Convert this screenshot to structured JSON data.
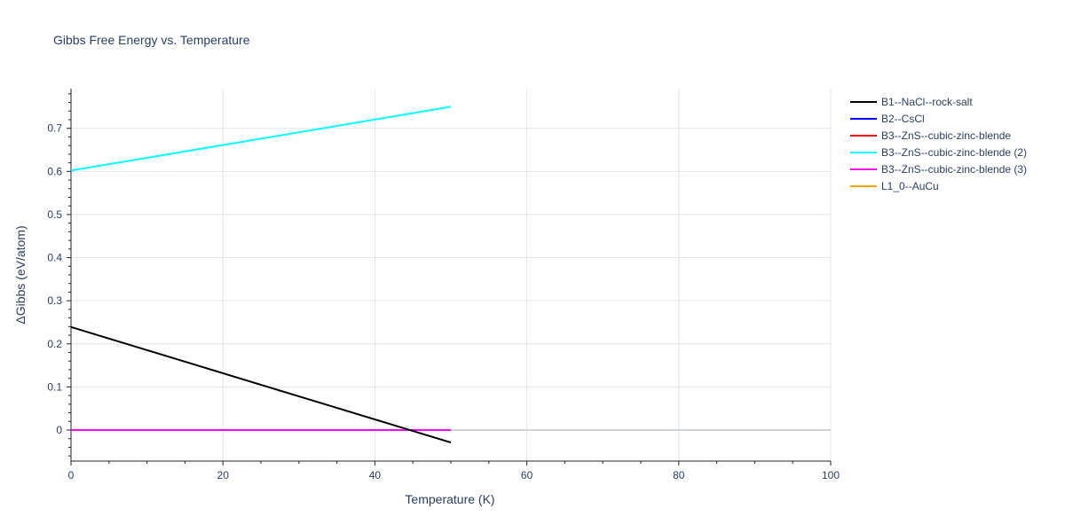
{
  "chart_data": {
    "type": "line",
    "title": "Gibbs Free Energy vs. Temperature",
    "xlabel": "Temperature (K)",
    "ylabel": "ΔGibbs (eV/atom)",
    "xlim": [
      0,
      100
    ],
    "ylim": [
      -0.072,
      0.792
    ],
    "x_ticks": [
      0,
      20,
      40,
      60,
      80,
      100
    ],
    "y_ticks": [
      0,
      0.1,
      0.2,
      0.3,
      0.4,
      0.5,
      0.6,
      0.7
    ],
    "y_tick_labels": [
      "0",
      "0.1",
      "0.2",
      "0.3",
      "0.4",
      "0.5",
      "0.6",
      "0.7"
    ],
    "grid": true,
    "legend_position": "top-right outside",
    "series": [
      {
        "name": "B1--NaCl--rock-salt",
        "color": "#000000",
        "x": [
          0,
          50
        ],
        "y": [
          0.239,
          -0.029
        ]
      },
      {
        "name": "B2--CsCl",
        "color": "#0000ff",
        "x": [
          0,
          50
        ],
        "y": [
          0,
          0
        ]
      },
      {
        "name": "B3--ZnS--cubic-zinc-blende",
        "color": "#ff0000",
        "x": [
          0,
          50
        ],
        "y": [
          0,
          0
        ]
      },
      {
        "name": "B3--ZnS--cubic-zinc-blende (2)",
        "color": "#00ffff",
        "x": [
          0,
          50
        ],
        "y": [
          0.602,
          0.75
        ]
      },
      {
        "name": "B3--ZnS--cubic-zinc-blende (3)",
        "color": "#ff00ff",
        "x": [
          0,
          50
        ],
        "y": [
          0,
          0
        ]
      },
      {
        "name": "L1_0--AuCu",
        "color": "#ffa500",
        "x": [
          0,
          50
        ],
        "y": [
          0,
          0
        ]
      }
    ],
    "draw_order": [
      1,
      2,
      5,
      4,
      0,
      3
    ]
  }
}
